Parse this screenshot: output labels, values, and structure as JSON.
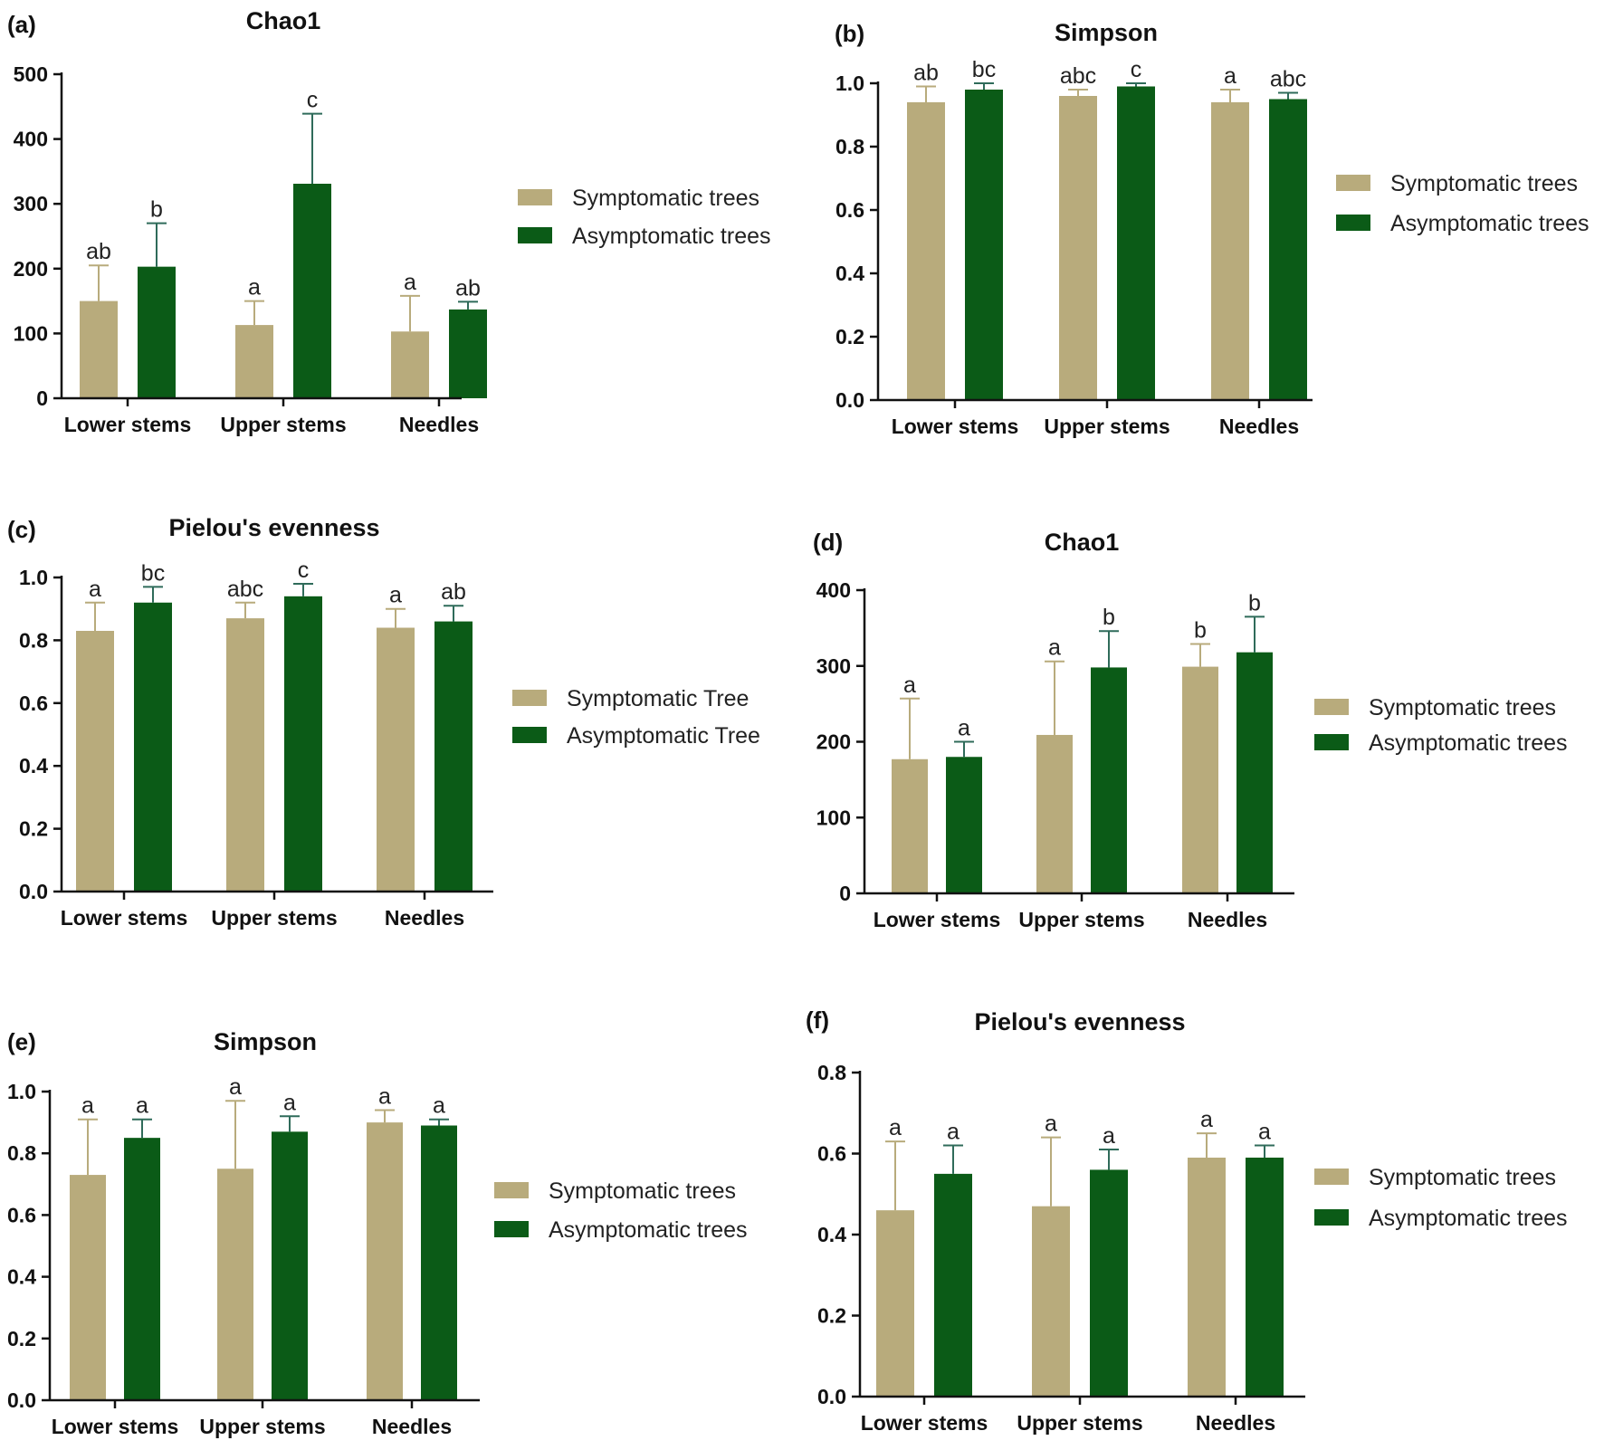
{
  "colors": {
    "symptomatic": "#b8ab7c",
    "asymptomatic": "#0b5b17",
    "symptomatic_err": "#b8ab7c",
    "asymptomatic_err": "#2f6b5a"
  },
  "chart_data": [
    {
      "panel": "(a)",
      "type": "bar",
      "title": "Chao1",
      "categories": [
        "Lower stems",
        "Upper stems",
        "Needles"
      ],
      "ylim": [
        0,
        500
      ],
      "yticks": [
        0,
        100,
        200,
        300,
        400,
        500
      ],
      "tick_decimals": 0,
      "legend_position": "right",
      "series": [
        {
          "name": "Symptomatic trees",
          "values": [
            150,
            113,
            103
          ],
          "errors": [
            55,
            37,
            55
          ],
          "labels": [
            "ab",
            "a",
            "a"
          ]
        },
        {
          "name": "Asymptomatic trees",
          "values": [
            203,
            331,
            137
          ],
          "errors": [
            67,
            108,
            12
          ],
          "labels": [
            "b",
            "c",
            "ab"
          ]
        }
      ]
    },
    {
      "panel": "(b)",
      "type": "bar",
      "title": "Simpson",
      "categories": [
        "Lower stems",
        "Upper stems",
        "Needles"
      ],
      "ylim": [
        0,
        1.0
      ],
      "yticks": [
        0,
        0.2,
        0.4,
        0.6,
        0.8,
        1.0
      ],
      "tick_decimals": 1,
      "legend_position": "right",
      "series": [
        {
          "name": "Symptomatic trees",
          "values": [
            0.94,
            0.96,
            0.94
          ],
          "errors": [
            0.05,
            0.02,
            0.04
          ],
          "labels": [
            "ab",
            "abc",
            "a"
          ]
        },
        {
          "name": "Asymptomatic trees",
          "values": [
            0.98,
            0.99,
            0.95
          ],
          "errors": [
            0.02,
            0.01,
            0.02
          ],
          "labels": [
            "bc",
            "c",
            "abc"
          ]
        }
      ]
    },
    {
      "panel": "(c)",
      "type": "bar",
      "title": "Pielou's evenness",
      "categories": [
        "Lower stems",
        "Upper stems",
        "Needles"
      ],
      "ylim": [
        0,
        1.0
      ],
      "yticks": [
        0,
        0.2,
        0.4,
        0.6,
        0.8,
        1.0
      ],
      "tick_decimals": 1,
      "legend_position": "right",
      "series": [
        {
          "name": "Symptomatic Tree",
          "values": [
            0.83,
            0.87,
            0.84
          ],
          "errors": [
            0.09,
            0.05,
            0.06
          ],
          "labels": [
            "a",
            "abc",
            "a"
          ]
        },
        {
          "name": "Asymptomatic Tree",
          "values": [
            0.92,
            0.94,
            0.86
          ],
          "errors": [
            0.05,
            0.04,
            0.05
          ],
          "labels": [
            "bc",
            "c",
            "ab"
          ]
        }
      ]
    },
    {
      "panel": "(d)",
      "type": "bar",
      "title": "Chao1",
      "categories": [
        "Lower stems",
        "Upper stems",
        "Needles"
      ],
      "ylim": [
        0,
        400
      ],
      "yticks": [
        0,
        100,
        200,
        300,
        400
      ],
      "tick_decimals": 0,
      "legend_position": "right",
      "series": [
        {
          "name": "Symptomatic trees",
          "values": [
            177,
            209,
            299
          ],
          "errors": [
            80,
            97,
            30
          ],
          "labels": [
            "a",
            "a",
            "b"
          ]
        },
        {
          "name": "Asymptomatic trees",
          "values": [
            180,
            298,
            318
          ],
          "errors": [
            20,
            48,
            47
          ],
          "labels": [
            "a",
            "b",
            "b"
          ]
        }
      ]
    },
    {
      "panel": "(e)",
      "type": "bar",
      "title": "Simpson",
      "categories": [
        "Lower stems",
        "Upper stems",
        "Needles"
      ],
      "ylim": [
        0,
        1.0
      ],
      "yticks": [
        0,
        0.2,
        0.4,
        0.6,
        0.8,
        1.0
      ],
      "tick_decimals": 1,
      "legend_position": "right",
      "series": [
        {
          "name": "Symptomatic trees",
          "values": [
            0.73,
            0.75,
            0.9
          ],
          "errors": [
            0.18,
            0.22,
            0.04
          ],
          "labels": [
            "a",
            "a",
            "a"
          ]
        },
        {
          "name": "Asymptomatic  trees",
          "values": [
            0.85,
            0.87,
            0.89
          ],
          "errors": [
            0.06,
            0.05,
            0.02
          ],
          "labels": [
            "a",
            "a",
            "a"
          ]
        }
      ]
    },
    {
      "panel": "(f)",
      "type": "bar",
      "title": "Pielou's evenness",
      "categories": [
        "Lower stems",
        "Upper stems",
        "Needles"
      ],
      "ylim": [
        0,
        0.8
      ],
      "yticks": [
        0,
        0.2,
        0.4,
        0.6,
        0.8
      ],
      "tick_decimals": 1,
      "legend_position": "right",
      "series": [
        {
          "name": "Symptomatic trees",
          "values": [
            0.46,
            0.47,
            0.59
          ],
          "errors": [
            0.17,
            0.17,
            0.06
          ],
          "labels": [
            "a",
            "a",
            "a"
          ]
        },
        {
          "name": "Asymptomatic trees",
          "values": [
            0.55,
            0.56,
            0.59
          ],
          "errors": [
            0.07,
            0.05,
            0.03
          ],
          "labels": [
            "a",
            "a",
            "a"
          ]
        }
      ]
    }
  ]
}
